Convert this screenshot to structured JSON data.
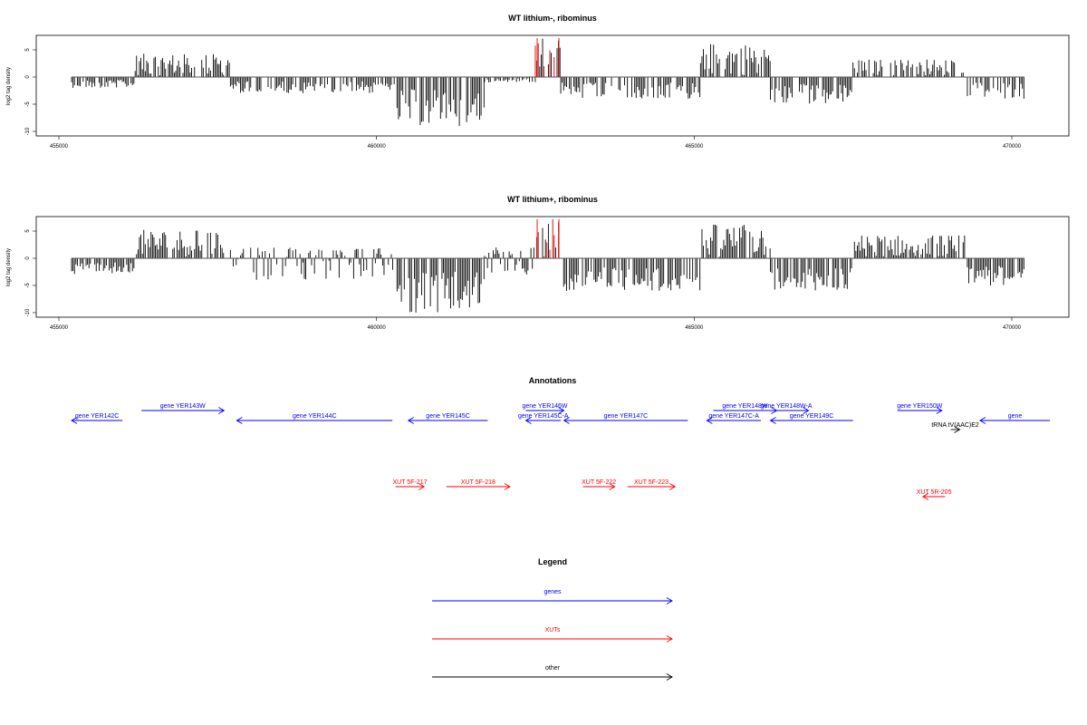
{
  "charts": [
    {
      "title": "WT lithium-, ribominus",
      "ylabel": "log2 tag density",
      "yticks": [
        "5",
        "0",
        "-5",
        "-10"
      ],
      "xticks": [
        "455000",
        "460000",
        "465000",
        "470000"
      ]
    },
    {
      "title": "WT lithium+, ribominus",
      "ylabel": "log2 tag density",
      "yticks": [
        "5",
        "0",
        "-5",
        "-10"
      ],
      "xticks": [
        "455000",
        "460000",
        "465000",
        "470000"
      ]
    }
  ],
  "annotations_title": "Annotations",
  "legend_title": "Legend",
  "colors": {
    "genes": "#0000ff",
    "xuts": "#ff0000",
    "other": "#000000"
  },
  "chart_data": [
    {
      "type": "bar",
      "title": "WT lithium-, ribominus",
      "ylabel": "log2 tag density",
      "xlim": [
        454800,
        470600
      ],
      "ylim": [
        -11,
        8
      ],
      "x_axis_ticks": [
        455000,
        460000,
        465000,
        470000
      ],
      "y_axis_ticks": [
        5,
        0,
        -5,
        -10
      ],
      "regions": [
        {
          "start": 455200,
          "end": 456200,
          "min": -2,
          "max": 0
        },
        {
          "start": 456200,
          "end": 457700,
          "min": -1,
          "max": 4
        },
        {
          "start": 457700,
          "end": 460300,
          "min": -3,
          "max": 1
        },
        {
          "start": 460300,
          "end": 461700,
          "min": -9,
          "max": 0
        },
        {
          "start": 461700,
          "end": 462500,
          "min": -1,
          "max": 1
        },
        {
          "start": 462500,
          "end": 462900,
          "min": 0,
          "max": 7,
          "highlight": true
        },
        {
          "start": 462900,
          "end": 465100,
          "min": -4,
          "max": 1
        },
        {
          "start": 465100,
          "end": 466200,
          "min": -1,
          "max": 6
        },
        {
          "start": 466200,
          "end": 467500,
          "min": -5,
          "max": 0
        },
        {
          "start": 467500,
          "end": 469300,
          "min": -1,
          "max": 3
        },
        {
          "start": 469300,
          "end": 470200,
          "min": -4,
          "max": 0
        }
      ]
    },
    {
      "type": "bar",
      "title": "WT lithium+, ribominus",
      "ylabel": "log2 tag density",
      "xlim": [
        454800,
        470600
      ],
      "ylim": [
        -11,
        8
      ],
      "x_axis_ticks": [
        455000,
        460000,
        465000,
        470000
      ],
      "y_axis_ticks": [
        5,
        0,
        -5,
        -10
      ],
      "regions": [
        {
          "start": 455200,
          "end": 456200,
          "min": -3,
          "max": 1
        },
        {
          "start": 456200,
          "end": 457700,
          "min": -1,
          "max": 5
        },
        {
          "start": 457700,
          "end": 460300,
          "min": -4,
          "max": 2
        },
        {
          "start": 460300,
          "end": 461700,
          "min": -10,
          "max": 0
        },
        {
          "start": 461700,
          "end": 462500,
          "min": -3,
          "max": 2
        },
        {
          "start": 462500,
          "end": 462900,
          "min": 0,
          "max": 7,
          "highlight": true
        },
        {
          "start": 462900,
          "end": 465100,
          "min": -6,
          "max": 1
        },
        {
          "start": 465100,
          "end": 466200,
          "min": -1,
          "max": 6
        },
        {
          "start": 466200,
          "end": 467500,
          "min": -6,
          "max": 0
        },
        {
          "start": 467500,
          "end": 469300,
          "min": -1,
          "max": 4
        },
        {
          "start": 469300,
          "end": 470200,
          "min": -5,
          "max": 0
        }
      ]
    }
  ],
  "genes": [
    {
      "label": "gene YER142C",
      "start": 455200,
      "end": 456000,
      "dir": "left",
      "row": 2
    },
    {
      "label": "gene YER143W",
      "start": 456300,
      "end": 457600,
      "dir": "right",
      "row": 1
    },
    {
      "label": "gene YER144C",
      "start": 457800,
      "end": 460250,
      "dir": "left",
      "row": 2
    },
    {
      "label": "gene YER145C",
      "start": 460500,
      "end": 461750,
      "dir": "left",
      "row": 2
    },
    {
      "label": "gene YER146W",
      "start": 462350,
      "end": 462950,
      "dir": "right",
      "row": 1
    },
    {
      "label": "gene YER145C-A",
      "start": 462350,
      "end": 462900,
      "dir": "left",
      "row": 2
    },
    {
      "label": "gene YER147C",
      "start": 462950,
      "end": 464900,
      "dir": "left",
      "row": 2
    },
    {
      "label": "gene YER148W",
      "start": 465300,
      "end": 466300,
      "dir": "right",
      "row": 1
    },
    {
      "label": "gene YER147C-A",
      "start": 465200,
      "end": 466050,
      "dir": "left",
      "row": 2
    },
    {
      "label": "gene YER148W-A",
      "start": 466100,
      "end": 466800,
      "dir": "right",
      "row": 1
    },
    {
      "label": "gene YER149C",
      "start": 466200,
      "end": 467500,
      "dir": "left",
      "row": 2
    },
    {
      "label": "gene YER150W",
      "start": 468200,
      "end": 468900,
      "dir": "right",
      "row": 1
    },
    {
      "label": "gene",
      "start": 469500,
      "end": 470600,
      "dir": "left",
      "row": 2
    }
  ],
  "xuts": [
    {
      "label": "XUT 5F-217",
      "start": 460300,
      "end": 460750,
      "dir": "right",
      "row": 1
    },
    {
      "label": "XUT 5F-218",
      "start": 461100,
      "end": 462100,
      "dir": "right",
      "row": 1
    },
    {
      "label": "XUT 5F-222",
      "start": 463250,
      "end": 463750,
      "dir": "right",
      "row": 1
    },
    {
      "label": "XUT 5F-223",
      "start": 463950,
      "end": 464700,
      "dir": "right",
      "row": 1
    },
    {
      "label": "XUT 5R-205",
      "start": 468600,
      "end": 468950,
      "dir": "left",
      "row": 2
    }
  ],
  "others": [
    {
      "label": "tRNA tV(AAC)E2",
      "start": 469040,
      "end": 469180,
      "dir": "right",
      "row": 1
    }
  ],
  "legend": [
    {
      "label": "genes",
      "key": "genes"
    },
    {
      "label": "XUTs",
      "key": "xuts"
    },
    {
      "label": "other",
      "key": "other"
    }
  ]
}
